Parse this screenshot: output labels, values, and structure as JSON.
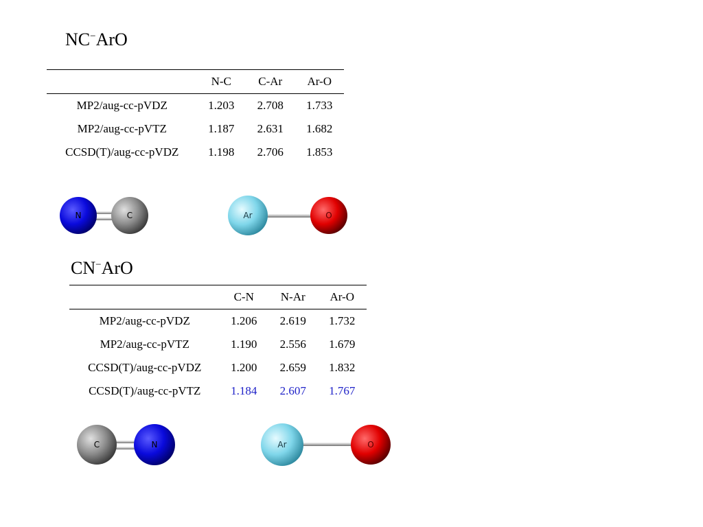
{
  "section1": {
    "title_base": "NC",
    "title_charge": "−",
    "title_rest": "ArO",
    "headers": [
      "",
      "N-C",
      "C-Ar",
      "Ar-O"
    ],
    "rows": [
      {
        "method": "MP2/aug-cc-pVDZ",
        "values": [
          "1.203",
          "2.708",
          "1.733"
        ]
      },
      {
        "method": "MP2/aug-cc-pVTZ",
        "values": [
          "1.187",
          "2.631",
          "1.682"
        ]
      },
      {
        "method": "CCSD(T)/aug-cc-pVDZ",
        "values": [
          "1.198",
          "2.706",
          "1.853"
        ]
      }
    ],
    "molecule_left": {
      "atoms": [
        "N",
        "C"
      ],
      "colors": [
        "#0a0adc",
        "#8c8c8c"
      ]
    },
    "molecule_right": {
      "atoms": [
        "Ar",
        "O"
      ],
      "colors": [
        "#7fd6ea",
        "#e00000"
      ]
    }
  },
  "section2": {
    "title_base": "CN",
    "title_charge": "−",
    "title_rest": "ArO",
    "headers": [
      "",
      "C-N",
      "N-Ar",
      "Ar-O"
    ],
    "rows": [
      {
        "method": "MP2/aug-cc-pVDZ",
        "values": [
          "1.206",
          "2.619",
          "1.732"
        ]
      },
      {
        "method": "MP2/aug-cc-pVTZ",
        "values": [
          "1.190",
          "2.556",
          "1.679"
        ]
      },
      {
        "method": "CCSD(T)/aug-cc-pVDZ",
        "values": [
          "1.200",
          "2.659",
          "1.832"
        ]
      },
      {
        "method": "CCSD(T)/aug-cc-pVTZ",
        "values": [
          "1.184",
          "2.607",
          "1.767"
        ]
      }
    ],
    "highlight_color": "#1f22c8",
    "molecule_left": {
      "atoms": [
        "C",
        "N"
      ],
      "colors": [
        "#8c8c8c",
        "#0a0adc"
      ]
    },
    "molecule_right": {
      "atoms": [
        "Ar",
        "O"
      ],
      "colors": [
        "#7fd6ea",
        "#e00000"
      ]
    }
  }
}
